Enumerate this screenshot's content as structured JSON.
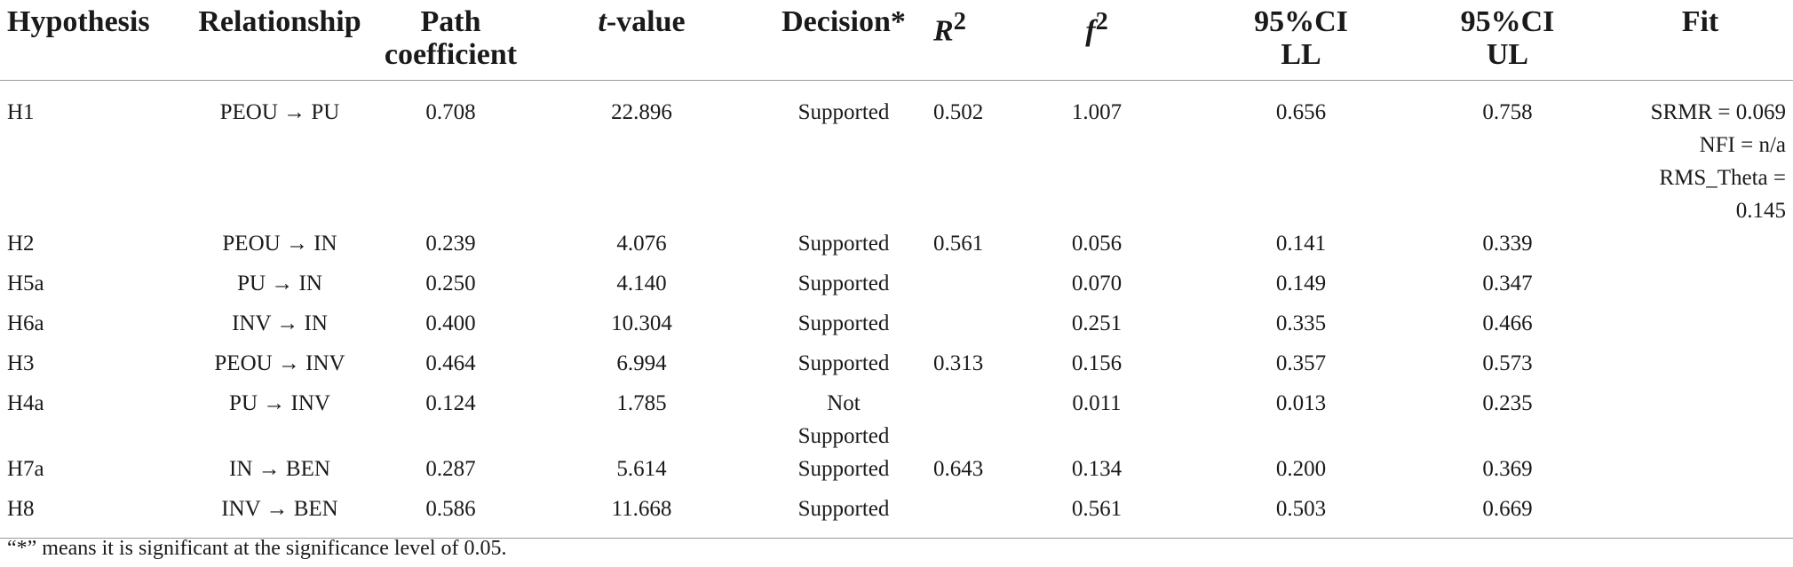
{
  "headers": {
    "hypothesis": "Hypothesis",
    "relationship": "Relationship",
    "path_line1": "Path",
    "path_line2": "coefficient",
    "t_italic": "t",
    "t_rest": "-value",
    "decision": "Decision*",
    "r2_base": "R",
    "r2_sup": "2",
    "f2_base": "f",
    "f2_sup": "2",
    "ll_line1": "95%CI",
    "ll_line2": "LL",
    "ul_line1": "95%CI",
    "ul_line2": "UL",
    "fit": "Fit"
  },
  "rows": [
    {
      "hyp": "H1",
      "rel": "PEOU → PU",
      "path": "0.708",
      "t": "22.896",
      "dec": "Supported",
      "r2": "0.502",
      "f2": "1.007",
      "ll": "0.656",
      "ul": "0.758"
    },
    {
      "hyp": "H2",
      "rel": "PEOU → IN",
      "path": "0.239",
      "t": "4.076",
      "dec": "Supported",
      "r2": "0.561",
      "f2": "0.056",
      "ll": "0.141",
      "ul": "0.339"
    },
    {
      "hyp": "H5a",
      "rel": "PU → IN",
      "path": "0.250",
      "t": "4.140",
      "dec": "Supported",
      "r2": "",
      "f2": "0.070",
      "ll": "0.149",
      "ul": "0.347"
    },
    {
      "hyp": "H6a",
      "rel": "INV → IN",
      "path": "0.400",
      "t": "10.304",
      "dec": "Supported",
      "r2": "",
      "f2": "0.251",
      "ll": "0.335",
      "ul": "0.466"
    },
    {
      "hyp": "H3",
      "rel": "PEOU → INV",
      "path": "0.464",
      "t": "6.994",
      "dec": "Supported",
      "r2": "0.313",
      "f2": "0.156",
      "ll": "0.357",
      "ul": "0.573"
    },
    {
      "hyp": "H4a",
      "rel": "PU → INV",
      "path": "0.124",
      "t": "1.785",
      "dec_line1": "Not",
      "dec_line2": "Supported",
      "r2": "",
      "f2": "0.011",
      "ll": "0.013",
      "ul": "0.235"
    },
    {
      "hyp": "H7a",
      "rel": "IN → BEN",
      "path": "0.287",
      "t": "5.614",
      "dec": "Supported",
      "r2": "0.643",
      "f2": "0.134",
      "ll": "0.200",
      "ul": "0.369"
    },
    {
      "hyp": "H8",
      "rel": "INV → BEN",
      "path": "0.586",
      "t": "11.668",
      "dec": "Supported",
      "r2": "",
      "f2": "0.561",
      "ll": "0.503",
      "ul": "0.669"
    }
  ],
  "fit_lines": [
    "SRMR = 0.069",
    "NFI = n/a",
    "RMS_Theta = 0.145"
  ],
  "footnote": "“*” means it is significant at the significance level of 0.05."
}
